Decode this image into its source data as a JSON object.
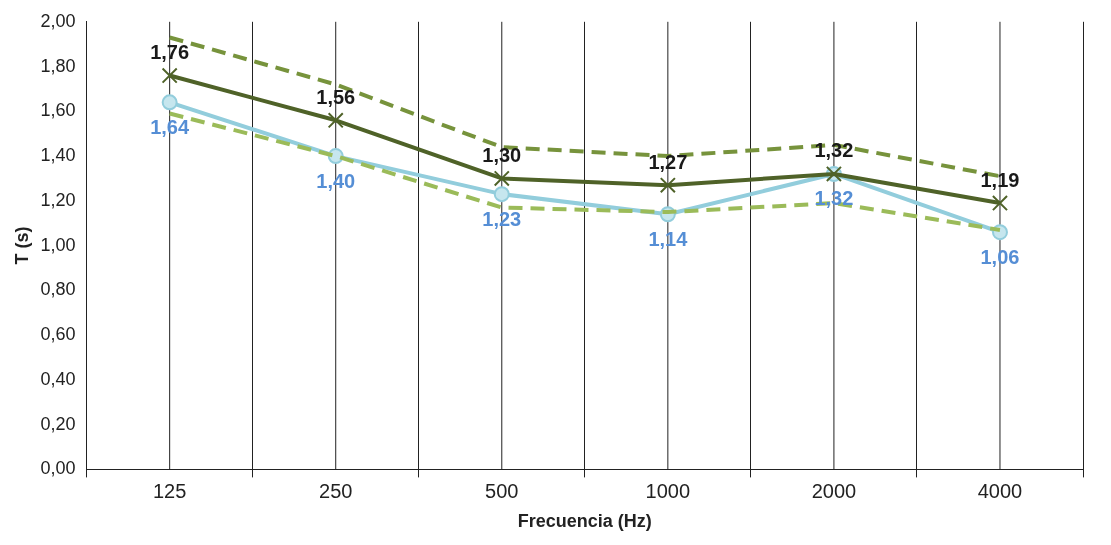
{
  "chart_data": {
    "type": "line",
    "xlabel": "Frecuencia (Hz)",
    "ylabel": "T (s)",
    "categories": [
      "125",
      "250",
      "500",
      "1000",
      "2000",
      "4000"
    ],
    "ylim": [
      0,
      2
    ],
    "yticks": [
      {
        "value": 0,
        "label": "0,00"
      },
      {
        "value": 0.2,
        "label": "0,20"
      },
      {
        "value": 0.4,
        "label": "0,40"
      },
      {
        "value": 0.6,
        "label": "0,60"
      },
      {
        "value": 0.8,
        "label": "0,80"
      },
      {
        "value": 1,
        "label": "1,00"
      },
      {
        "value": 1.2,
        "label": "1,20"
      },
      {
        "value": 1.4,
        "label": "1,40"
      },
      {
        "value": 1.6,
        "label": "1,60"
      },
      {
        "value": 1.8,
        "label": "1,80"
      },
      {
        "value": 2,
        "label": "2,00"
      }
    ],
    "grid": "x",
    "legend": false,
    "series": [
      {
        "color": "#77933c",
        "line_style": "dashed",
        "marker": "none",
        "values": [
          1.93,
          1.72,
          1.44,
          1.4,
          1.45,
          1.31
        ]
      },
      {
        "color": "#9bbb59",
        "line_style": "dashed",
        "marker": "none",
        "values": [
          1.59,
          1.4,
          1.17,
          1.15,
          1.19,
          1.07
        ]
      },
      {
        "color": "#4f6228",
        "line_style": "solid",
        "marker": "cross",
        "values": [
          1.76,
          1.56,
          1.3,
          1.27,
          1.32,
          1.19
        ],
        "value_labels": [
          "1,76",
          "1,56",
          "1,30",
          "1,27",
          "1,32",
          "1,19"
        ]
      },
      {
        "color": "#92cddc",
        "line_style": "solid",
        "marker": "circle",
        "values": [
          1.64,
          1.4,
          1.23,
          1.14,
          1.32,
          1.06
        ],
        "value_labels": [
          "1,64",
          "1,40",
          "1,23",
          "1,14",
          "1,32",
          "1,06"
        ]
      }
    ]
  }
}
